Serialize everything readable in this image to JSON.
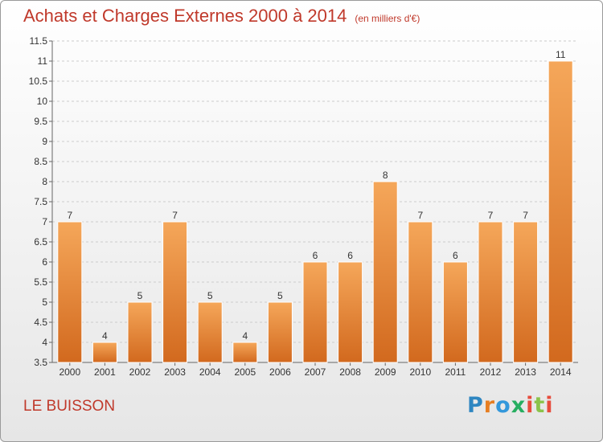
{
  "header": {
    "title": "Achats et Charges Externes 2000 à 2014",
    "unit": "(en milliers d'€)"
  },
  "footer": {
    "location": "LE BUISSON",
    "brand": [
      "P",
      "r",
      "o",
      "x",
      "i",
      "t",
      "i"
    ]
  },
  "chart_data": {
    "type": "bar",
    "categories": [
      "2000",
      "2001",
      "2002",
      "2003",
      "2004",
      "2005",
      "2006",
      "2007",
      "2008",
      "2009",
      "2010",
      "2011",
      "2012",
      "2013",
      "2014"
    ],
    "values": [
      7,
      4,
      5,
      7,
      5,
      4,
      5,
      6,
      6,
      8,
      7,
      6,
      7,
      7,
      11
    ],
    "ylim": [
      3.5,
      11.5
    ],
    "yticks": [
      "3.5",
      "4",
      "4.5",
      "5",
      "5.5",
      "6",
      "6.5",
      "7",
      "7.5",
      "8",
      "8.5",
      "9",
      "9.5",
      "10",
      "10.5",
      "11",
      "11.5"
    ],
    "title": "Achats et Charges Externes 2000 à 2014",
    "grid": true,
    "colors": {
      "bar_top": "#f5a75a",
      "bar_bottom": "#d2691e",
      "grid": "#cccccc"
    }
  }
}
